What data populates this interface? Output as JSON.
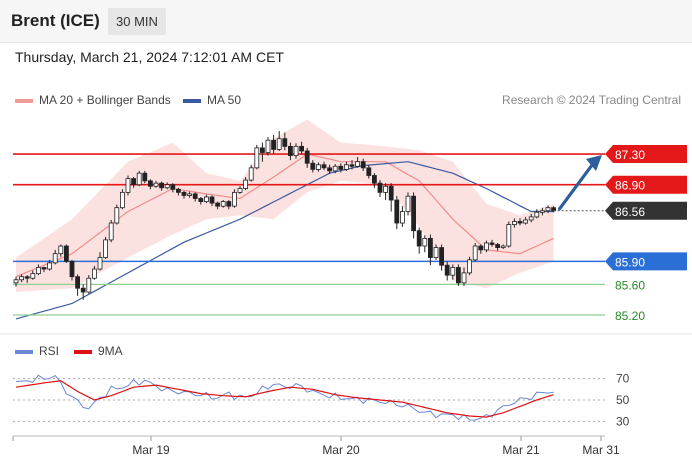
{
  "header": {
    "title": "Brent (ICE)",
    "timeframe": "30 MIN"
  },
  "datetime": "Thursday, March 21, 2024 7:12:01 AM CET",
  "legend": {
    "bb": "MA 20 + Bollinger Bands",
    "ma50": "MA 50",
    "credit": "Research © 2024 Trading Central"
  },
  "rsi_legend": {
    "rsi": "RSI",
    "ma9": "9MA"
  },
  "colors": {
    "bb_fill": "#fcdcdc",
    "bb_mid": "#f28b8b",
    "ma50": "#3a5aa0",
    "resistance": "#e41818",
    "support": "#2a6fd6",
    "target": "#8fcf8f",
    "rsi": "#6b88d8",
    "rsi_ma": "#dd1111",
    "up_candle": "#ffffff",
    "down_candle": "#222222",
    "arrow": "#2c5e9e",
    "price_label": "#333333"
  },
  "chart_data": [
    {
      "type": "candlestick",
      "x_ticks": [
        "Mar 19",
        "Mar 20",
        "Mar 21",
        "Mar 31"
      ],
      "y_range": [
        85.07,
        87.77
      ],
      "current_price": {
        "label": "86.56",
        "value": 86.56
      },
      "levels": [
        {
          "label": "87.30",
          "value": 87.3,
          "kind": "resistance"
        },
        {
          "label": "86.90",
          "value": 86.9,
          "kind": "resistance"
        },
        {
          "label": "85.90",
          "value": 85.9,
          "kind": "support"
        },
        {
          "label": "85.60",
          "value": 85.6,
          "kind": "target"
        },
        {
          "label": "85.20",
          "value": 85.2,
          "kind": "target"
        }
      ],
      "series": [
        {
          "name": "MA 20 + Bollinger Bands",
          "anchors": [
            [
              0,
              85.7,
              85.95,
              85.5
            ],
            [
              10,
              86.0,
              86.45,
              85.55
            ],
            [
              20,
              86.55,
              87.2,
              85.95
            ],
            [
              28,
              86.85,
              87.45,
              86.25
            ],
            [
              34,
              86.78,
              87.05,
              86.45
            ],
            [
              40,
              86.72,
              86.95,
              86.5
            ],
            [
              46,
              87.0,
              87.5,
              86.45
            ],
            [
              52,
              87.3,
              87.75,
              86.8
            ],
            [
              58,
              87.2,
              87.45,
              86.95
            ],
            [
              66,
              87.2,
              87.4,
              86.9
            ],
            [
              72,
              86.95,
              87.35,
              86.35
            ],
            [
              78,
              86.45,
              87.2,
              85.65
            ],
            [
              84,
              86.05,
              86.65,
              85.55
            ],
            [
              90,
              86.0,
              86.5,
              85.75
            ],
            [
              96,
              86.2,
              86.65,
              85.9
            ]
          ]
        },
        {
          "name": "MA 50",
          "anchors": [
            [
              0,
              85.15
            ],
            [
              10,
              85.35
            ],
            [
              20,
              85.75
            ],
            [
              30,
              86.15
            ],
            [
              40,
              86.45
            ],
            [
              48,
              86.75
            ],
            [
              56,
              87.05
            ],
            [
              62,
              87.15
            ],
            [
              70,
              87.2
            ],
            [
              78,
              87.05
            ],
            [
              84,
              86.85
            ],
            [
              92,
              86.55
            ],
            [
              96,
              86.55
            ]
          ]
        }
      ],
      "candles": [
        [
          85.62,
          85.66,
          85.7,
          85.57
        ],
        [
          85.66,
          85.7,
          85.73,
          85.63
        ],
        [
          85.7,
          85.68,
          85.72,
          85.62
        ],
        [
          85.68,
          85.74,
          85.78,
          85.66
        ],
        [
          85.74,
          85.82,
          85.86,
          85.72
        ],
        [
          85.82,
          85.8,
          85.83,
          85.76
        ],
        [
          85.8,
          85.88,
          85.92,
          85.78
        ],
        [
          85.88,
          86.0,
          86.05,
          85.86
        ],
        [
          86.0,
          86.1,
          86.12,
          85.96
        ],
        [
          86.1,
          85.9,
          86.12,
          85.88
        ],
        [
          85.9,
          85.7,
          85.92,
          85.65
        ],
        [
          85.7,
          85.55,
          85.73,
          85.45
        ],
        [
          85.55,
          85.5,
          85.6,
          85.4
        ],
        [
          85.5,
          85.68,
          85.72,
          85.48
        ],
        [
          85.68,
          85.8,
          85.84,
          85.66
        ],
        [
          85.8,
          85.95,
          86.02,
          85.78
        ],
        [
          85.95,
          86.18,
          86.22,
          85.93
        ],
        [
          86.18,
          86.4,
          86.44,
          86.15
        ],
        [
          86.4,
          86.6,
          86.64,
          86.38
        ],
        [
          86.6,
          86.8,
          86.84,
          86.58
        ],
        [
          86.8,
          86.98,
          87.02,
          86.76
        ],
        [
          86.98,
          86.9,
          87.0,
          86.86
        ],
        [
          86.9,
          87.05,
          87.08,
          86.88
        ],
        [
          87.05,
          86.95,
          87.08,
          86.92
        ],
        [
          86.95,
          86.88,
          86.97,
          86.84
        ],
        [
          86.88,
          86.92,
          86.95,
          86.86
        ],
        [
          86.92,
          86.86,
          86.94,
          86.82
        ],
        [
          86.86,
          86.9,
          86.93,
          86.84
        ],
        [
          86.9,
          86.84,
          86.92,
          86.8
        ],
        [
          86.84,
          86.8,
          86.86,
          86.76
        ],
        [
          86.8,
          86.76,
          86.82,
          86.72
        ],
        [
          86.76,
          86.78,
          86.81,
          86.73
        ],
        [
          86.78,
          86.72,
          86.8,
          86.68
        ],
        [
          86.72,
          86.68,
          86.74,
          86.64
        ],
        [
          86.68,
          86.74,
          86.77,
          86.66
        ],
        [
          86.74,
          86.66,
          86.76,
          86.62
        ],
        [
          86.66,
          86.62,
          86.68,
          86.58
        ],
        [
          86.62,
          86.68,
          86.7,
          86.6
        ],
        [
          86.68,
          86.62,
          86.7,
          86.58
        ],
        [
          86.62,
          86.8,
          86.84,
          86.6
        ],
        [
          86.8,
          86.85,
          86.88,
          86.78
        ],
        [
          86.85,
          86.96,
          87.0,
          86.83
        ],
        [
          86.96,
          87.12,
          87.16,
          86.94
        ],
        [
          87.12,
          87.38,
          87.42,
          87.1
        ],
        [
          87.38,
          87.32,
          87.45,
          87.2
        ],
        [
          87.32,
          87.48,
          87.52,
          87.28
        ],
        [
          87.48,
          87.36,
          87.55,
          87.3
        ],
        [
          87.36,
          87.5,
          87.6,
          87.34
        ],
        [
          87.5,
          87.4,
          87.58,
          87.35
        ],
        [
          87.4,
          87.28,
          87.45,
          87.22
        ],
        [
          87.28,
          87.4,
          87.44,
          87.24
        ],
        [
          87.4,
          87.34,
          87.46,
          87.3
        ],
        [
          87.34,
          87.18,
          87.38,
          87.12
        ],
        [
          87.18,
          87.1,
          87.22,
          87.06
        ],
        [
          87.1,
          87.16,
          87.19,
          87.07
        ],
        [
          87.16,
          87.12,
          87.2,
          87.09
        ],
        [
          87.12,
          87.08,
          87.16,
          87.04
        ],
        [
          87.08,
          87.14,
          87.17,
          87.05
        ],
        [
          87.14,
          87.1,
          87.18,
          87.06
        ],
        [
          87.1,
          87.16,
          87.2,
          87.08
        ],
        [
          87.16,
          87.14,
          87.22,
          87.1
        ],
        [
          87.14,
          87.2,
          87.26,
          87.12
        ],
        [
          87.2,
          87.12,
          87.24,
          87.08
        ],
        [
          87.12,
          87.02,
          87.16,
          86.98
        ],
        [
          87.02,
          86.92,
          87.05,
          86.86
        ],
        [
          86.92,
          86.8,
          86.96,
          86.74
        ],
        [
          86.8,
          86.88,
          86.92,
          86.7
        ],
        [
          86.88,
          86.7,
          86.92,
          86.55
        ],
        [
          86.7,
          86.4,
          86.75,
          86.32
        ],
        [
          86.4,
          86.55,
          86.62,
          86.35
        ],
        [
          86.55,
          86.75,
          86.8,
          86.5
        ],
        [
          86.75,
          86.3,
          86.8,
          86.2
        ],
        [
          86.3,
          86.1,
          86.34,
          86.0
        ],
        [
          86.1,
          86.2,
          86.24,
          86.02
        ],
        [
          86.2,
          85.95,
          86.25,
          85.85
        ],
        [
          85.95,
          86.08,
          86.12,
          85.92
        ],
        [
          86.08,
          85.85,
          86.12,
          85.78
        ],
        [
          85.85,
          85.72,
          85.9,
          85.65
        ],
        [
          85.72,
          85.82,
          85.86,
          85.66
        ],
        [
          85.82,
          85.62,
          85.86,
          85.58
        ],
        [
          85.62,
          85.75,
          85.82,
          85.58
        ],
        [
          85.75,
          85.92,
          85.96,
          85.72
        ],
        [
          85.92,
          86.1,
          86.14,
          85.9
        ],
        [
          86.1,
          86.05,
          86.12,
          86.0
        ],
        [
          86.05,
          86.14,
          86.17,
          86.02
        ],
        [
          86.14,
          86.12,
          86.18,
          86.09
        ],
        [
          86.12,
          86.08,
          86.14,
          86.04
        ],
        [
          86.08,
          86.1,
          86.12,
          86.06
        ],
        [
          86.1,
          86.38,
          86.42,
          86.08
        ],
        [
          86.38,
          86.42,
          86.46,
          86.34
        ],
        [
          86.42,
          86.4,
          86.46,
          86.37
        ],
        [
          86.4,
          86.44,
          86.48,
          86.38
        ],
        [
          86.44,
          86.48,
          86.52,
          86.41
        ],
        [
          86.48,
          86.54,
          86.58,
          86.46
        ],
        [
          86.54,
          86.56,
          86.6,
          86.5
        ],
        [
          86.56,
          86.6,
          86.63,
          86.53
        ],
        [
          86.6,
          86.56,
          86.62,
          86.54
        ]
      ]
    },
    {
      "type": "line",
      "title": "RSI",
      "y_range": [
        20,
        80
      ],
      "y_ticks": [
        70,
        50,
        30
      ],
      "series": [
        {
          "name": "RSI",
          "anchors": [
            [
              0,
              66
            ],
            [
              4,
              70
            ],
            [
              7,
              72
            ],
            [
              9,
              58
            ],
            [
              11,
              48
            ],
            [
              13,
              42
            ],
            [
              15,
              52
            ],
            [
              17,
              60
            ],
            [
              19,
              62
            ],
            [
              21,
              66
            ],
            [
              23,
              68
            ],
            [
              25,
              63
            ],
            [
              27,
              59
            ],
            [
              30,
              57
            ],
            [
              33,
              55
            ],
            [
              36,
              52
            ],
            [
              38,
              56
            ],
            [
              40,
              52
            ],
            [
              42,
              54
            ],
            [
              44,
              60
            ],
            [
              46,
              65
            ],
            [
              48,
              62
            ],
            [
              50,
              64
            ],
            [
              52,
              60
            ],
            [
              54,
              56
            ],
            [
              57,
              53
            ],
            [
              60,
              51
            ],
            [
              63,
              50
            ],
            [
              66,
              48
            ],
            [
              68,
              46
            ],
            [
              70,
              44
            ],
            [
              72,
              40
            ],
            [
              74,
              37
            ],
            [
              76,
              36
            ],
            [
              78,
              36
            ],
            [
              80,
              33
            ],
            [
              82,
              32
            ],
            [
              84,
              34
            ],
            [
              86,
              40
            ],
            [
              88,
              46
            ],
            [
              90,
              50
            ],
            [
              92,
              53
            ],
            [
              94,
              57
            ],
            [
              96,
              58
            ]
          ]
        },
        {
          "name": "9MA",
          "anchors": [
            [
              0,
              62
            ],
            [
              5,
              66
            ],
            [
              8,
              68
            ],
            [
              11,
              58
            ],
            [
              14,
              50
            ],
            [
              17,
              54
            ],
            [
              21,
              62
            ],
            [
              25,
              64
            ],
            [
              29,
              60
            ],
            [
              33,
              56
            ],
            [
              37,
              54
            ],
            [
              41,
              53
            ],
            [
              45,
              58
            ],
            [
              49,
              62
            ],
            [
              53,
              60
            ],
            [
              57,
              55
            ],
            [
              61,
              52
            ],
            [
              65,
              50
            ],
            [
              69,
              48
            ],
            [
              73,
              43
            ],
            [
              77,
              38
            ],
            [
              81,
              35
            ],
            [
              84,
              34
            ],
            [
              87,
              38
            ],
            [
              90,
              44
            ],
            [
              93,
              50
            ],
            [
              96,
              55
            ]
          ]
        }
      ]
    }
  ]
}
